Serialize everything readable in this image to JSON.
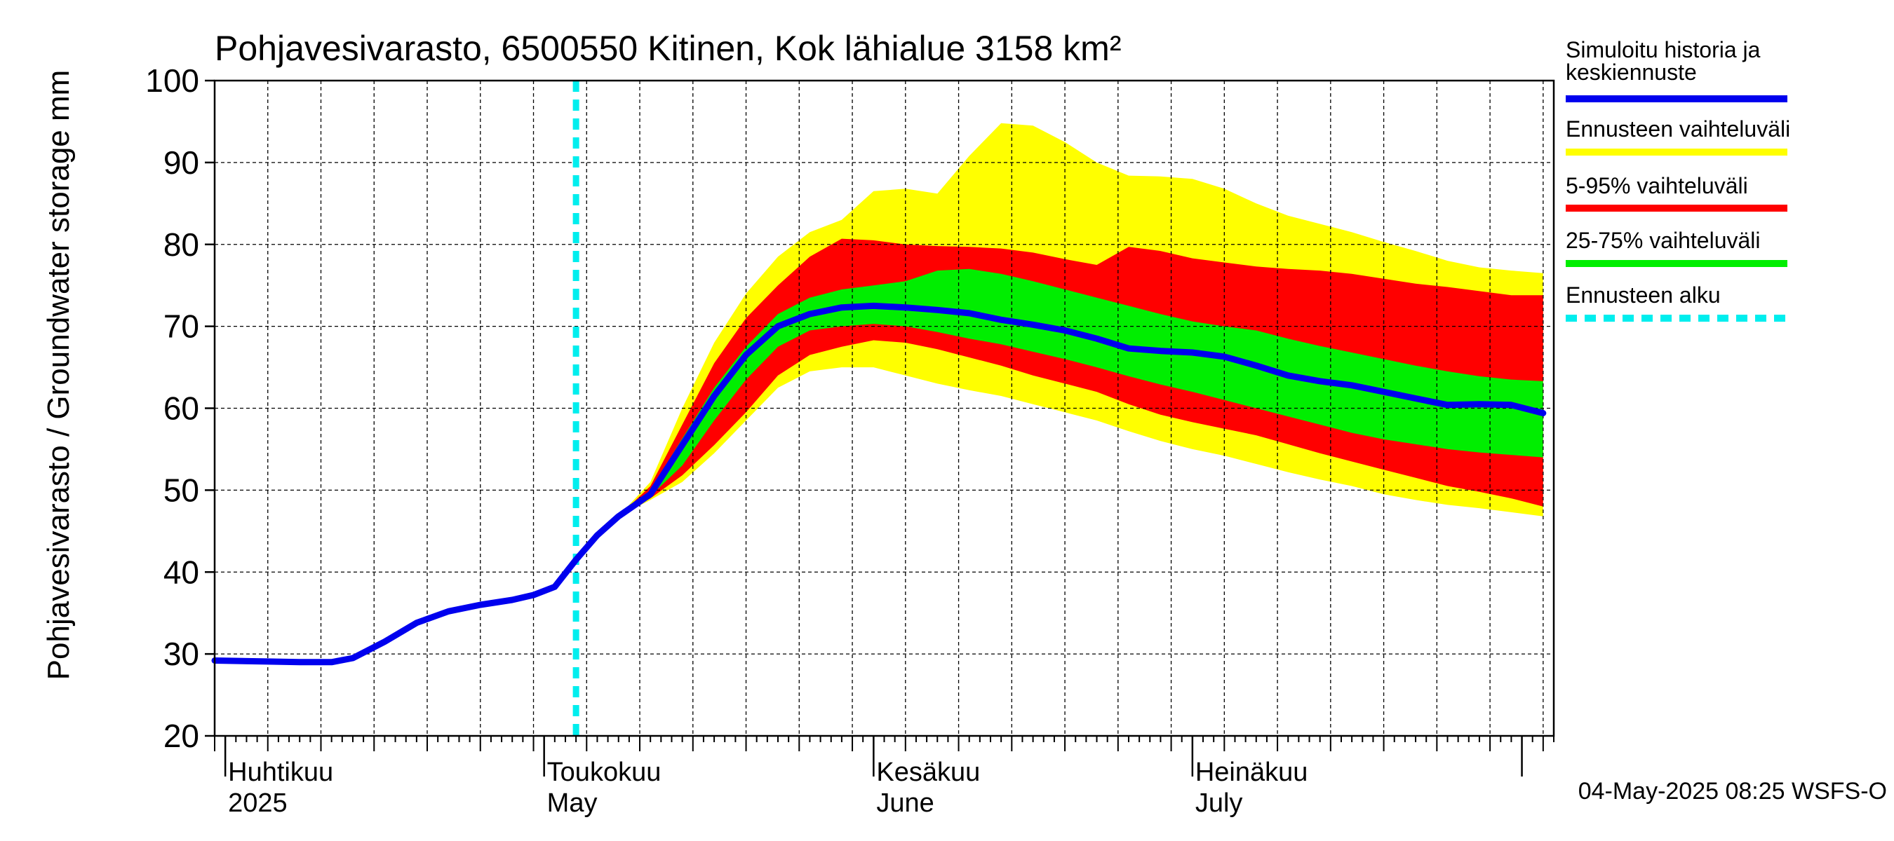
{
  "chart_data": {
    "type": "area",
    "title": "Pohjavesivarasto, 6500550 Kitinen, Kok lähialue 3158 km²",
    "ylabel": "Pohjavesivarasto / Groundwater storage   mm",
    "ylim": [
      20,
      100
    ],
    "yticks": [
      20,
      30,
      40,
      50,
      60,
      70,
      80,
      90,
      100
    ],
    "grid": true,
    "legend_position": "right",
    "x_range": [
      "2025-03-31",
      "2025-08-04"
    ],
    "month_labels": [
      {
        "date": "2025-04-01",
        "line1": "Huhtikuu",
        "line2": "2025"
      },
      {
        "date": "2025-05-01",
        "line1": "Toukokuu",
        "line2": "May"
      },
      {
        "date": "2025-06-01",
        "line1": "Kesäkuu",
        "line2": "June"
      },
      {
        "date": "2025-07-01",
        "line1": "Heinäkuu",
        "line2": "July"
      }
    ],
    "forecast_start": "2025-05-04",
    "footer": "04-May-2025 08:25 WSFS-O",
    "colors": {
      "history": "#0000ee",
      "range": "#ffff00",
      "p5_95": "#ff0000",
      "p25_75": "#00ee00",
      "forecast_start": "#00eeee",
      "grid": "#000000"
    },
    "legend": [
      {
        "key": "history",
        "label": "Simuloitu historia ja keskiennuste",
        "lines": [
          "Simuloitu historia ja",
          "keskiennuste"
        ]
      },
      {
        "key": "range",
        "label": "Ennusteen vaihteluväli",
        "lines": [
          "Ennusteen vaihteluväli"
        ]
      },
      {
        "key": "p5_95",
        "label": "5-95% vaihteluväli",
        "lines": [
          "5-95% vaihteluväli"
        ]
      },
      {
        "key": "p25_75",
        "label": "25-75% vaihteluväli",
        "lines": [
          "25-75% vaihteluväli"
        ]
      },
      {
        "key": "forecast_start",
        "label": "Ennusteen alku",
        "lines": [
          "Ennusteen alku"
        ]
      }
    ],
    "series": [
      {
        "name": "Simuloitu historia ja keskiennuste",
        "x": [
          "2025-03-31",
          "2025-04-04",
          "2025-04-08",
          "2025-04-11",
          "2025-04-13",
          "2025-04-16",
          "2025-04-19",
          "2025-04-22",
          "2025-04-25",
          "2025-04-28",
          "2025-04-30",
          "2025-05-02",
          "2025-05-04",
          "2025-05-06",
          "2025-05-08",
          "2025-05-11",
          "2025-05-14",
          "2025-05-17",
          "2025-05-20",
          "2025-05-23",
          "2025-05-26",
          "2025-05-29",
          "2025-06-01",
          "2025-06-04",
          "2025-06-07",
          "2025-06-10",
          "2025-06-13",
          "2025-06-16",
          "2025-06-19",
          "2025-06-22",
          "2025-06-25",
          "2025-06-28",
          "2025-07-01",
          "2025-07-04",
          "2025-07-07",
          "2025-07-10",
          "2025-07-13",
          "2025-07-16",
          "2025-07-19",
          "2025-07-22",
          "2025-07-25",
          "2025-07-28",
          "2025-07-31",
          "2025-08-03"
        ],
        "y": [
          29.2,
          29.1,
          29.0,
          29.0,
          29.5,
          31.5,
          33.8,
          35.2,
          36.0,
          36.6,
          37.2,
          38.2,
          41.5,
          44.5,
          46.8,
          49.5,
          55.5,
          61.5,
          66.5,
          70.0,
          71.5,
          72.3,
          72.5,
          72.3,
          72.0,
          71.6,
          70.8,
          70.2,
          69.5,
          68.5,
          67.3,
          67.0,
          66.8,
          66.3,
          65.2,
          64.0,
          63.3,
          62.8,
          62.0,
          61.2,
          60.4,
          60.5,
          60.4,
          59.4
        ]
      }
    ],
    "bands": {
      "x": [
        "2025-05-04",
        "2025-05-06",
        "2025-05-08",
        "2025-05-11",
        "2025-05-14",
        "2025-05-17",
        "2025-05-20",
        "2025-05-23",
        "2025-05-26",
        "2025-05-29",
        "2025-06-01",
        "2025-06-04",
        "2025-06-07",
        "2025-06-10",
        "2025-06-13",
        "2025-06-16",
        "2025-06-19",
        "2025-06-22",
        "2025-06-25",
        "2025-06-28",
        "2025-07-01",
        "2025-07-04",
        "2025-07-07",
        "2025-07-10",
        "2025-07-13",
        "2025-07-16",
        "2025-07-19",
        "2025-07-22",
        "2025-07-25",
        "2025-07-28",
        "2025-07-31",
        "2025-08-03"
      ],
      "min": [
        41.5,
        44.5,
        46.8,
        48.8,
        51.0,
        54.5,
        58.5,
        62.5,
        64.5,
        65.0,
        65.0,
        64.0,
        63.0,
        62.2,
        61.5,
        60.5,
        59.5,
        58.5,
        57.2,
        56.0,
        55.0,
        54.2,
        53.2,
        52.2,
        51.3,
        50.5,
        49.5,
        48.8,
        48.2,
        47.8,
        47.3,
        46.8
      ],
      "p5": [
        41.5,
        44.5,
        46.8,
        49.0,
        51.8,
        55.5,
        59.5,
        64.0,
        66.5,
        67.5,
        68.3,
        68.0,
        67.2,
        66.2,
        65.2,
        64.0,
        63.0,
        62.0,
        60.5,
        59.2,
        58.3,
        57.5,
        56.7,
        55.6,
        54.5,
        53.5,
        52.5,
        51.5,
        50.5,
        49.8,
        49.0,
        48.0
      ],
      "p25": [
        41.5,
        44.5,
        46.8,
        49.3,
        53.0,
        58.5,
        63.5,
        67.5,
        69.5,
        70.0,
        70.3,
        70.0,
        69.3,
        68.5,
        67.8,
        66.9,
        66.0,
        65.0,
        63.9,
        62.9,
        62.0,
        61.0,
        60.0,
        59.0,
        58.0,
        57.0,
        56.2,
        55.6,
        55.0,
        54.6,
        54.3,
        54.0
      ],
      "p75": [
        41.5,
        44.5,
        46.8,
        50.0,
        56.3,
        62.5,
        67.5,
        71.5,
        73.5,
        74.5,
        75.0,
        75.5,
        76.8,
        77.0,
        76.4,
        75.5,
        74.5,
        73.5,
        72.5,
        71.5,
        70.6,
        70.0,
        69.5,
        68.5,
        67.6,
        66.8,
        66.0,
        65.2,
        64.5,
        63.9,
        63.5,
        63.3
      ],
      "p95": [
        41.5,
        44.5,
        46.8,
        50.5,
        58.0,
        65.5,
        71.0,
        75.0,
        78.5,
        80.7,
        80.5,
        80.0,
        79.8,
        79.7,
        79.5,
        79.0,
        78.2,
        77.5,
        79.7,
        79.2,
        78.3,
        77.8,
        77.3,
        77.0,
        76.8,
        76.4,
        75.8,
        75.2,
        74.8,
        74.3,
        73.8,
        73.8
      ],
      "max": [
        41.5,
        44.5,
        46.8,
        51.0,
        60.0,
        68.0,
        74.0,
        78.5,
        81.5,
        83.0,
        86.5,
        86.8,
        86.2,
        90.8,
        94.8,
        94.5,
        92.5,
        90.0,
        88.4,
        88.3,
        88.0,
        86.8,
        85.0,
        83.5,
        82.5,
        81.5,
        80.3,
        79.2,
        78.0,
        77.2,
        76.8,
        76.5
      ]
    }
  }
}
